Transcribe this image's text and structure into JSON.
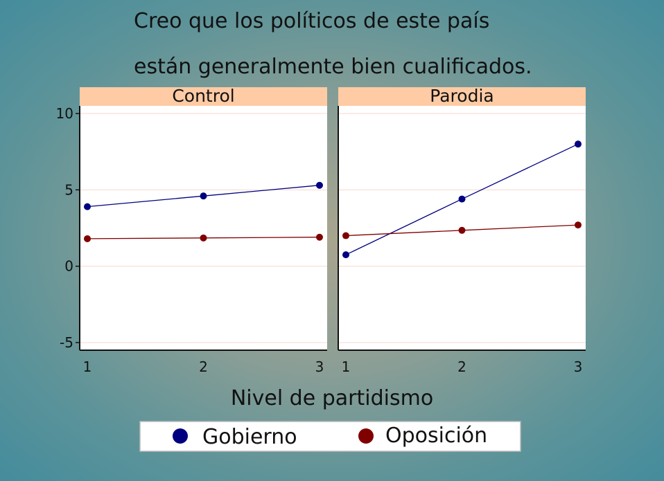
{
  "chart_data": {
    "type": "line",
    "title_lines": [
      "Creo que los políticos de este país",
      "están generalmente bien cualificados."
    ],
    "xlabel": "Nivel de partidismo",
    "ylabel": "",
    "x": [
      1,
      2,
      3
    ],
    "x_ticks": [
      "1",
      "2",
      "3"
    ],
    "ylim": [
      -5.5,
      10.5
    ],
    "y_ticks": [
      -5,
      0,
      5,
      10
    ],
    "y_tick_labels": [
      "-5",
      "0",
      "5",
      "10"
    ],
    "grid": true,
    "legend_position": "bottom",
    "colors": {
      "Gobierno": "#000080",
      "Oposición": "#800000",
      "strip": "#ffcba4",
      "grid": "#f6d9cf"
    },
    "panels": [
      {
        "label": "Control",
        "series": [
          {
            "name": "Gobierno",
            "values": [
              3.9,
              4.6,
              5.3
            ]
          },
          {
            "name": "Oposición",
            "values": [
              1.8,
              1.85,
              1.9
            ]
          }
        ]
      },
      {
        "label": "Parodia",
        "series": [
          {
            "name": "Gobierno",
            "values": [
              0.75,
              4.4,
              8.0
            ]
          },
          {
            "name": "Oposición",
            "values": [
              2.0,
              2.35,
              2.7
            ]
          }
        ]
      }
    ],
    "legend": [
      "Gobierno",
      "Oposición"
    ]
  }
}
